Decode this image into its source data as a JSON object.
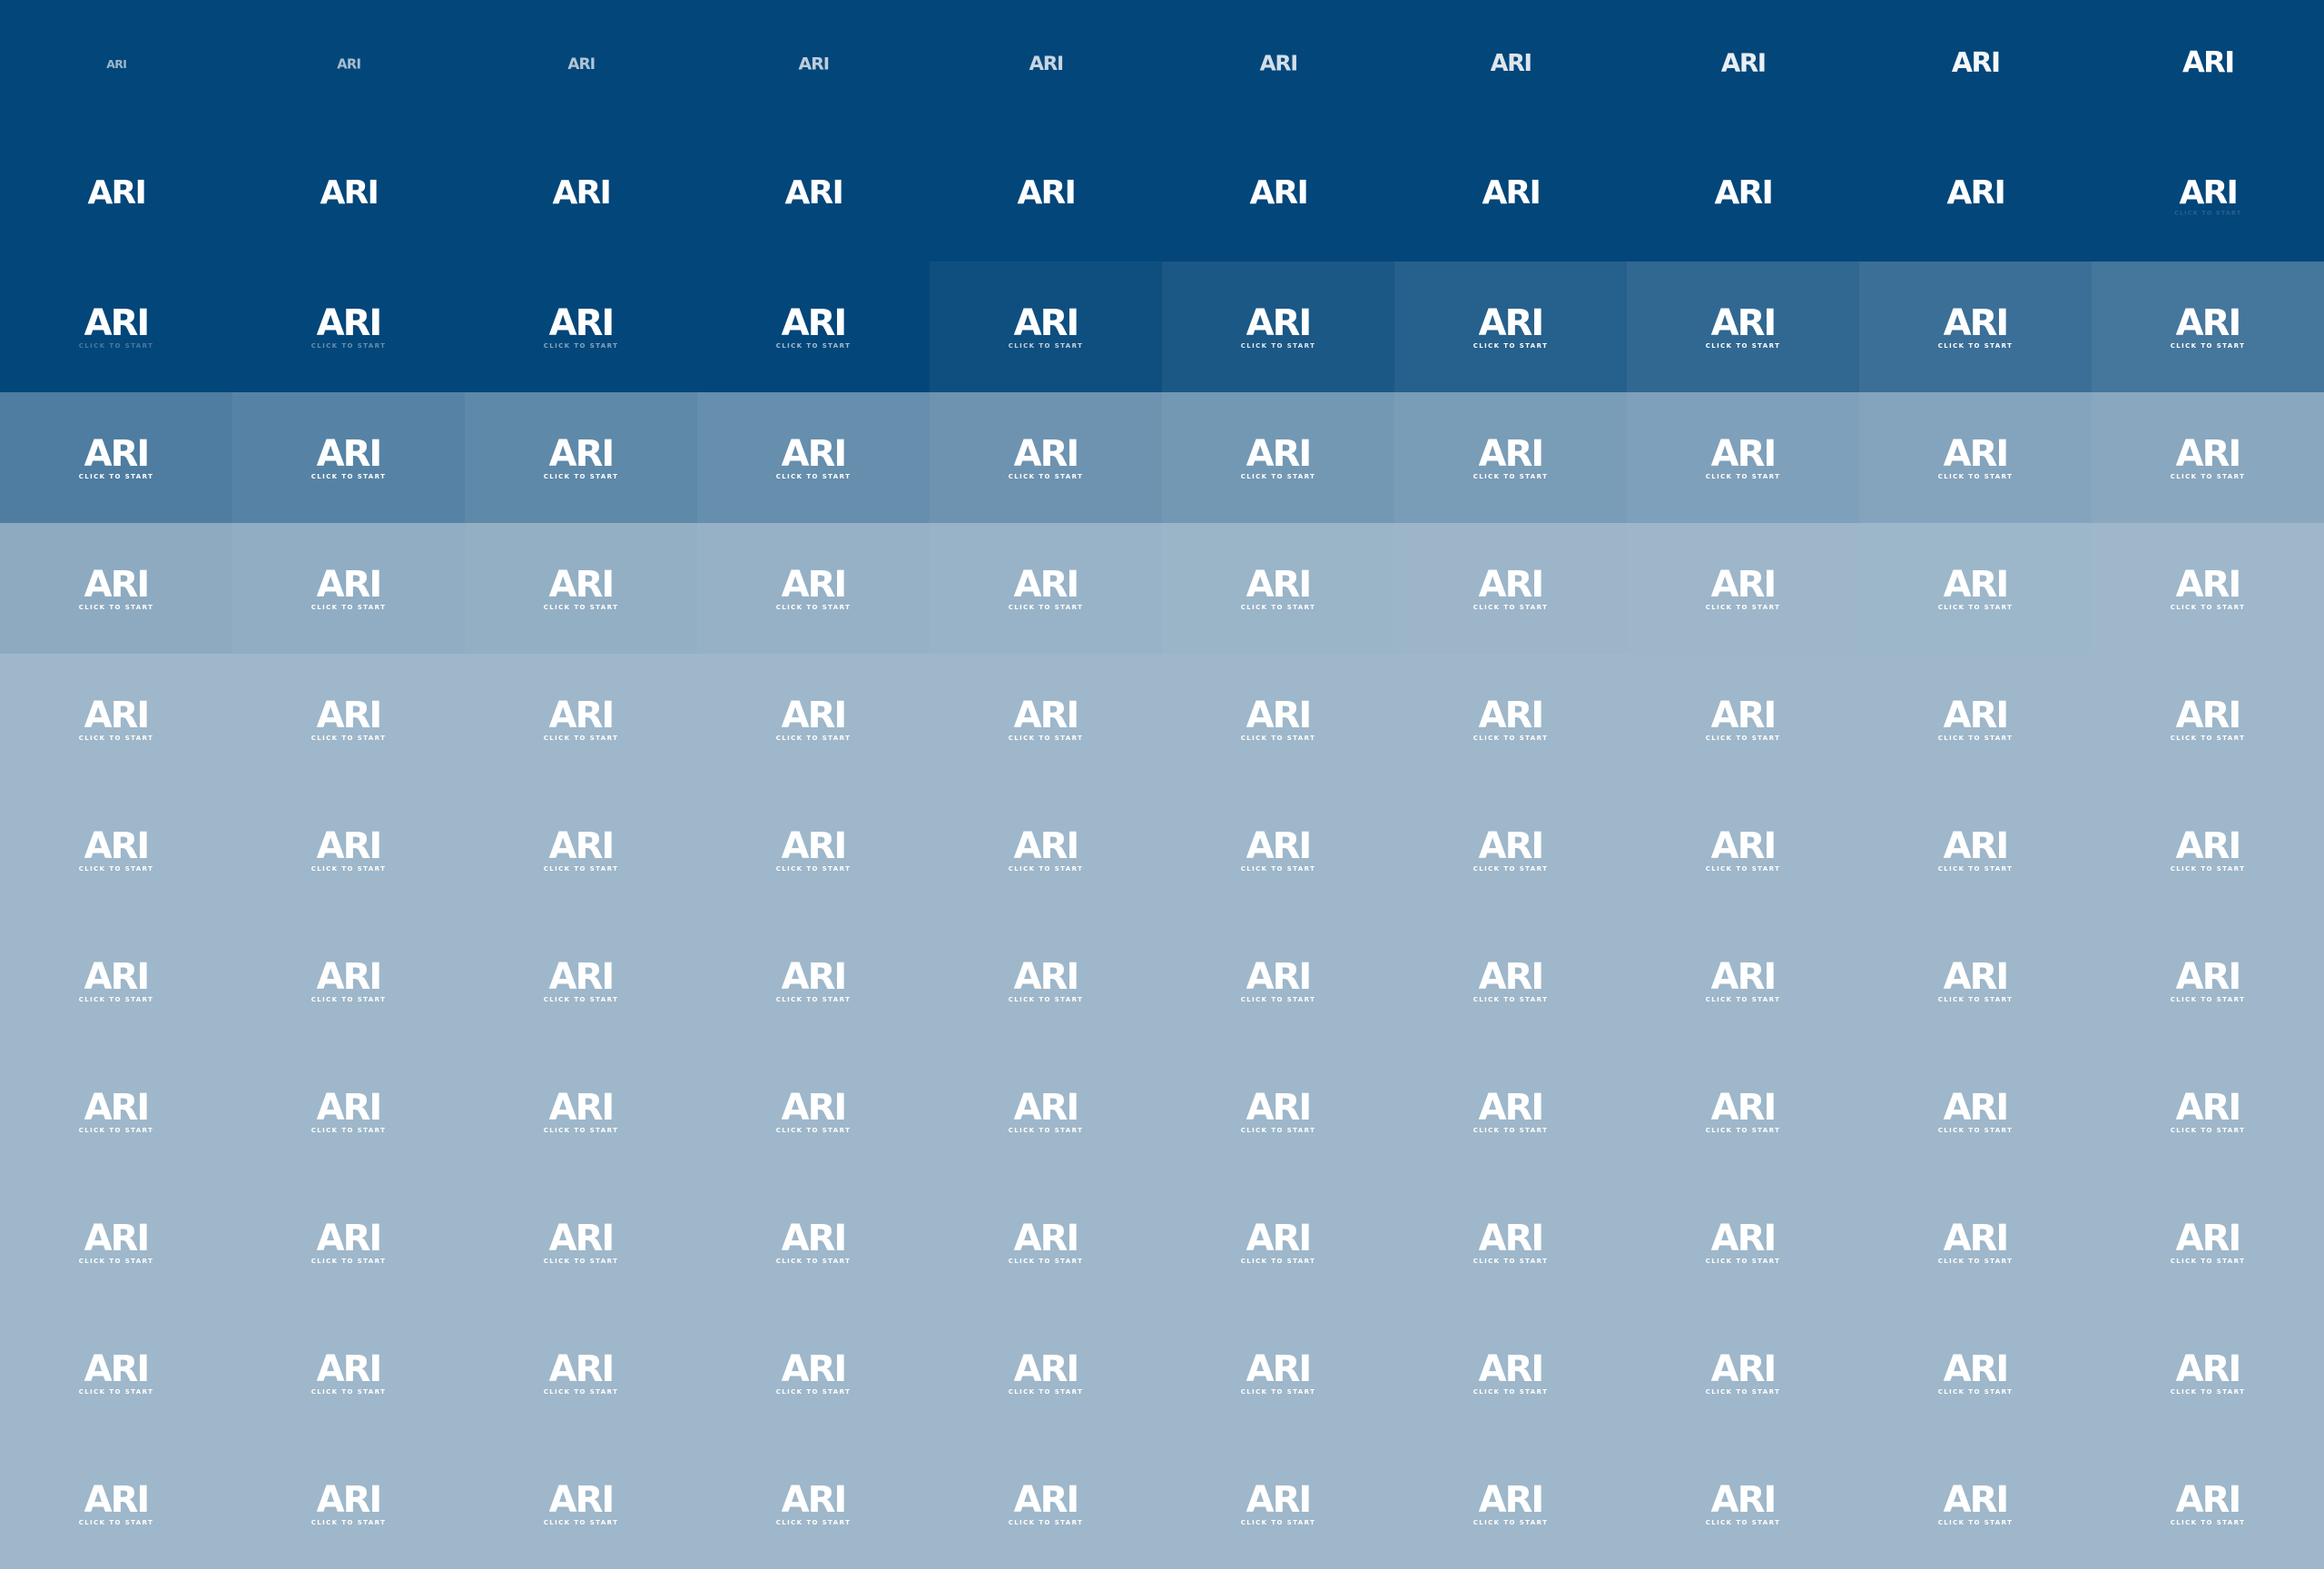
{
  "logo": {
    "wordmark": "ARI",
    "tagline": "CLICK TO START"
  },
  "colors": {
    "dark_navy": "#03467a",
    "final_light_blue": "#9eb7ca",
    "text": "#ffffff"
  },
  "frames": {
    "count": 120,
    "columns": 10,
    "rows": 12,
    "description_order": "row-major left-to-right, top-to-bottom"
  }
}
